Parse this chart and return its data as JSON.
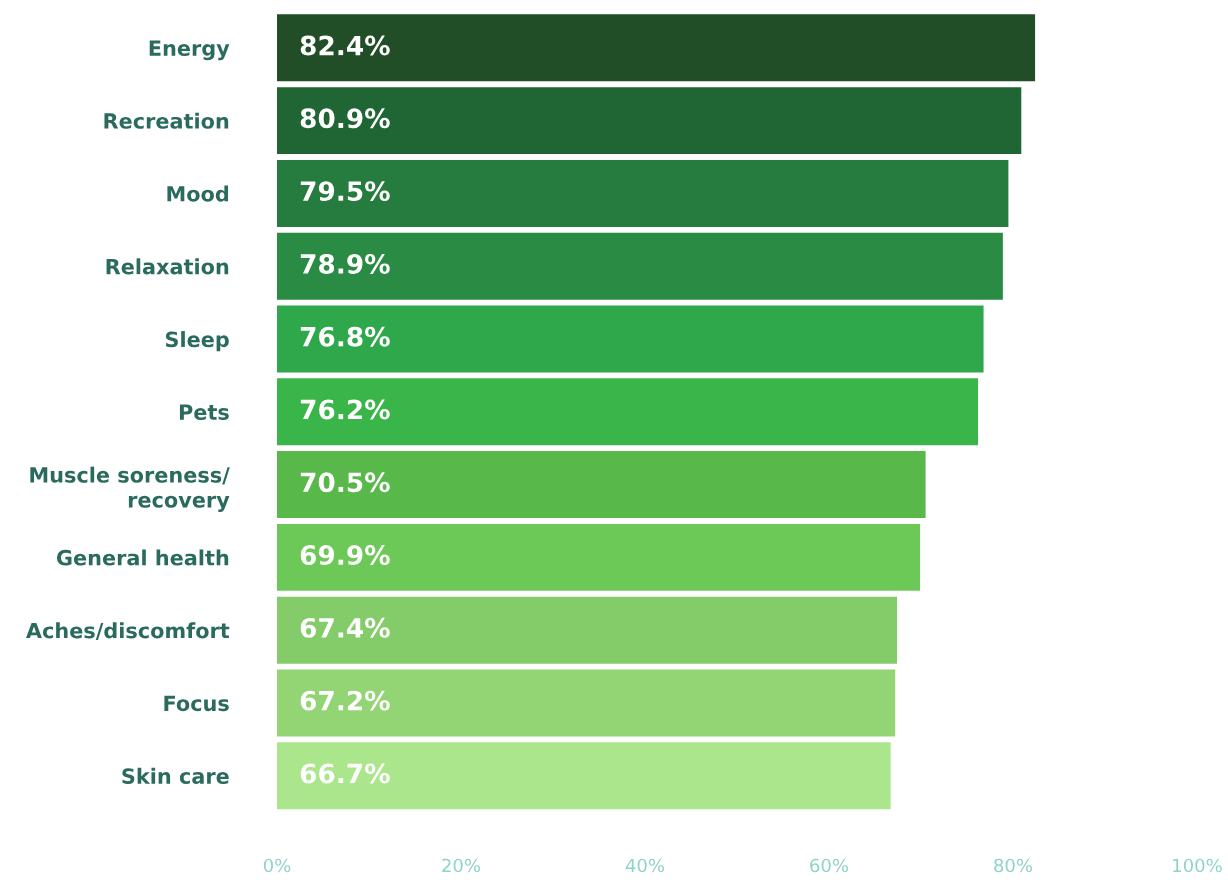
{
  "chart_data": {
    "type": "bar",
    "orientation": "horizontal",
    "categories": [
      "Energy",
      "Recreation",
      "Mood",
      "Relaxation",
      "Sleep",
      "Pets",
      "Muscle soreness/\nrecovery",
      "General health",
      "Aches/discomfort",
      "Focus",
      "Skin care"
    ],
    "values": [
      82.4,
      80.9,
      79.5,
      78.9,
      76.8,
      76.2,
      70.5,
      69.9,
      67.4,
      67.2,
      66.7
    ],
    "value_labels": [
      "82.4%",
      "80.9%",
      "79.5%",
      "78.9%",
      "76.8%",
      "76.2%",
      "70.5%",
      "69.9%",
      "67.4%",
      "67.2%",
      "66.7%"
    ],
    "colors": [
      "#214e26",
      "#206634",
      "#267c3f",
      "#2a8c44",
      "#2ea84b",
      "#3ab54a",
      "#58b84a",
      "#6dc957",
      "#84cc6a",
      "#93d574",
      "#ace68c"
    ],
    "xlim": [
      0,
      100
    ],
    "xticks": [
      {
        "value": 0,
        "label": "0%"
      },
      {
        "value": 20,
        "label": "20%"
      },
      {
        "value": 40,
        "label": "40%"
      },
      {
        "value": 60,
        "label": "60%"
      },
      {
        "value": 80,
        "label": "80%"
      },
      {
        "value": 100,
        "label": "100%"
      }
    ],
    "grid": false,
    "legend": false
  }
}
